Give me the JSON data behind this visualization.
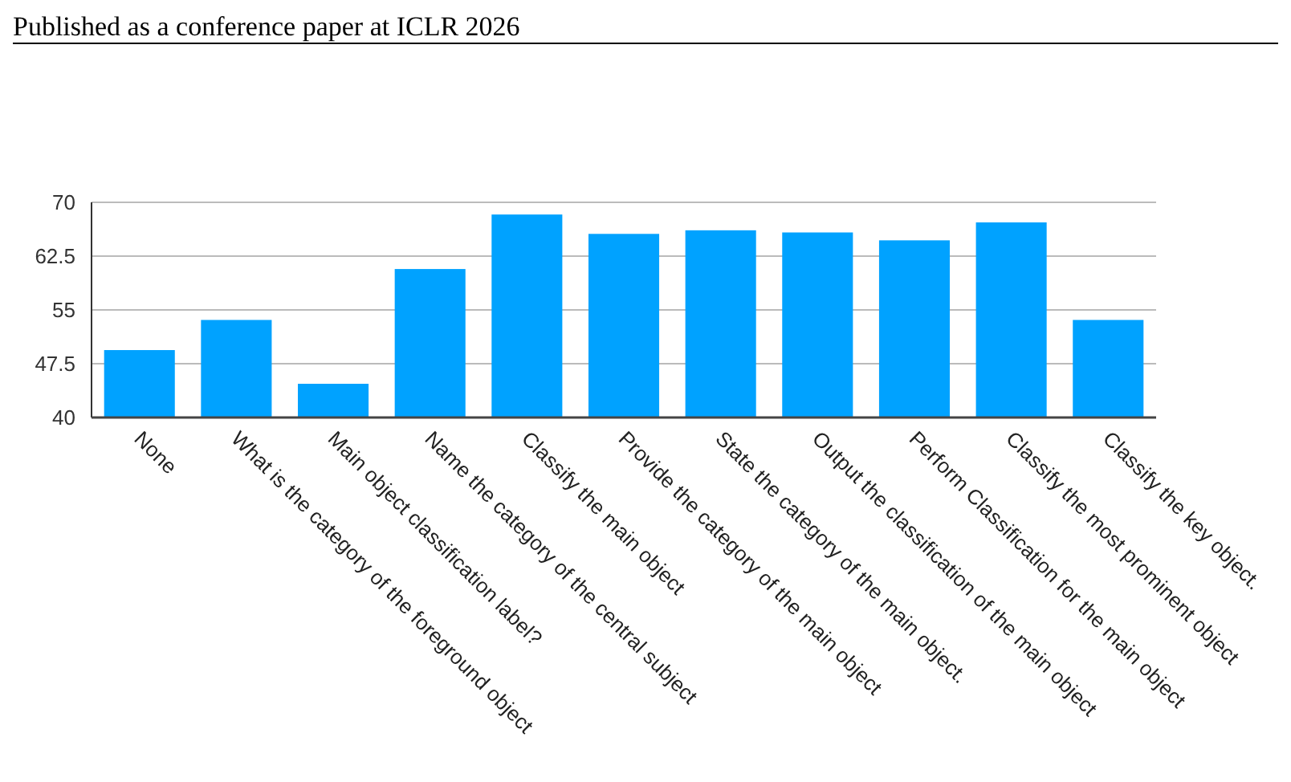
{
  "chart_data": {
    "type": "bar",
    "annotations": [
      "Published as a conference paper at ICLR 2026"
    ],
    "categories": [
      "None",
      "What is the category of the foreground object",
      "Main object classification label?",
      "Name the category of the central subject",
      "Classify the main object",
      "Provide the category of the main object",
      "State the category of the main object.",
      "Output the classification of the main object",
      "Perform Classification for the main object",
      "Classify the most prominent object",
      "Classify the key object."
    ],
    "values": [
      49.4,
      53.6,
      44.7,
      60.7,
      68.3,
      65.6,
      66.1,
      65.8,
      64.7,
      67.2,
      53.6
    ],
    "color": "#00a2ff",
    "ylim": [
      40,
      70
    ],
    "yticks": [
      40,
      47.5,
      55,
      62.5,
      70
    ],
    "grid": "y"
  }
}
